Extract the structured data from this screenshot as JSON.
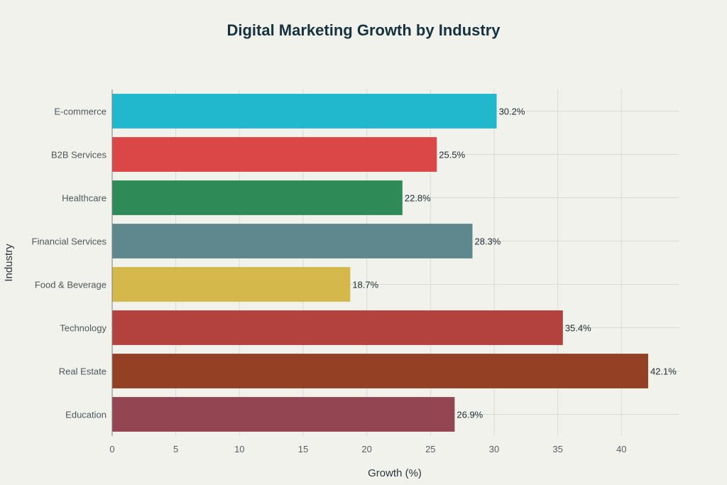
{
  "chart_data": {
    "type": "bar",
    "orientation": "horizontal",
    "title": "Digital Marketing Growth by Industry",
    "xlabel": "Growth (%)",
    "ylabel": "Industry",
    "xlim": [
      0,
      44.5
    ],
    "xticks": [
      0,
      5,
      10,
      15,
      20,
      25,
      30,
      35,
      40
    ],
    "grid": true,
    "legend": "none",
    "value_suffix": "%",
    "categories": [
      "E-commerce",
      "B2B Services",
      "Healthcare",
      "Financial Services",
      "Food & Beverage",
      "Technology",
      "Real Estate",
      "Education"
    ],
    "values": [
      30.2,
      25.5,
      22.8,
      28.3,
      18.7,
      35.4,
      42.1,
      26.9
    ],
    "data_labels": [
      "30.2%",
      "25.5%",
      "22.8%",
      "28.3%",
      "18.7%",
      "35.4%",
      "42.1%",
      "26.9%"
    ],
    "colors": [
      "#21b8cd",
      "#db4646",
      "#2e8b57",
      "#5e878e",
      "#d4b84c",
      "#b3423f",
      "#934024",
      "#934551"
    ]
  }
}
